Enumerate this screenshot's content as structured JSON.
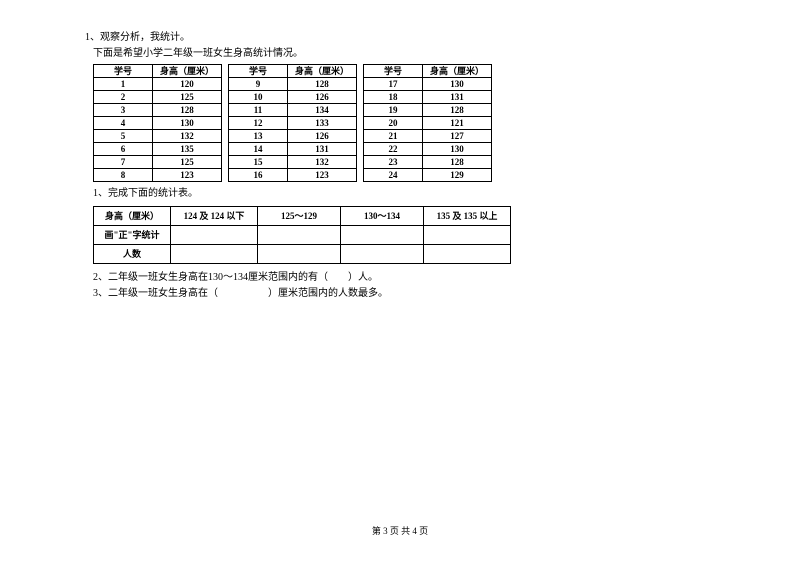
{
  "q1": {
    "title": "1、观察分析，我统计。",
    "subtitle": "下面是希望小学二年级一班女生身高统计情况。",
    "headers": {
      "id": "学号",
      "height": "身高（厘米）"
    },
    "rows": [
      {
        "a_id": "1",
        "a_h": "120",
        "b_id": "9",
        "b_h": "128",
        "c_id": "17",
        "c_h": "130"
      },
      {
        "a_id": "2",
        "a_h": "125",
        "b_id": "10",
        "b_h": "126",
        "c_id": "18",
        "c_h": "131"
      },
      {
        "a_id": "3",
        "a_h": "128",
        "b_id": "11",
        "b_h": "134",
        "c_id": "19",
        "c_h": "128"
      },
      {
        "a_id": "4",
        "a_h": "130",
        "b_id": "12",
        "b_h": "133",
        "c_id": "20",
        "c_h": "121"
      },
      {
        "a_id": "5",
        "a_h": "132",
        "b_id": "13",
        "b_h": "126",
        "c_id": "21",
        "c_h": "127"
      },
      {
        "a_id": "6",
        "a_h": "135",
        "b_id": "14",
        "b_h": "131",
        "c_id": "22",
        "c_h": "130"
      },
      {
        "a_id": "7",
        "a_h": "125",
        "b_id": "15",
        "b_h": "132",
        "c_id": "23",
        "c_h": "128"
      },
      {
        "a_id": "8",
        "a_h": "123",
        "b_id": "16",
        "b_h": "123",
        "c_id": "24",
        "c_h": "129"
      }
    ],
    "sub1": "1、完成下面的统计表。",
    "summary_headers": {
      "col1": "身高（厘米）",
      "col2": "124 及 124 以下",
      "col3": "125～129",
      "col4": "130～134",
      "col5": "135 及 135 以上"
    },
    "summary_rows": {
      "r2": "画\"正\"字统计",
      "r3": "人数"
    },
    "sub2": "2、二年级一班女生身高在130～134厘米范围内的有（　　）人。",
    "sub3": "3、二年级一班女生身高在（　　　　　）厘米范围内的人数最多。"
  },
  "footer": "第 3 页 共 4 页"
}
